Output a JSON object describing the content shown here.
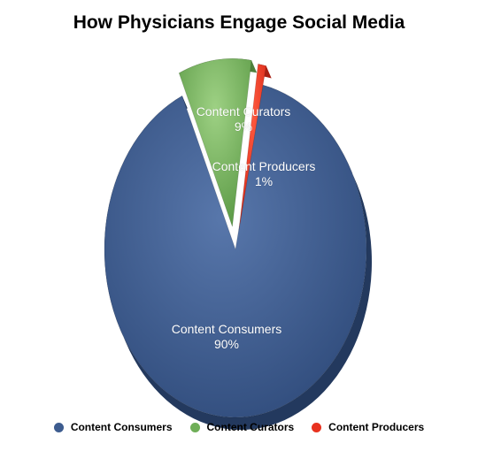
{
  "chart_data": {
    "type": "pie",
    "title": "How Physicians Engage Social Media",
    "slices": [
      {
        "label": "Content Consumers",
        "value": 90,
        "value_label": "90%",
        "color": "#3d5c8f"
      },
      {
        "label": "Content Curators",
        "value": 9,
        "value_label": "9%",
        "color": "#6fae58"
      },
      {
        "label": "Content Producers",
        "value": 1,
        "value_label": "1%",
        "color": "#e8321f"
      }
    ],
    "legend_position": "bottom"
  }
}
